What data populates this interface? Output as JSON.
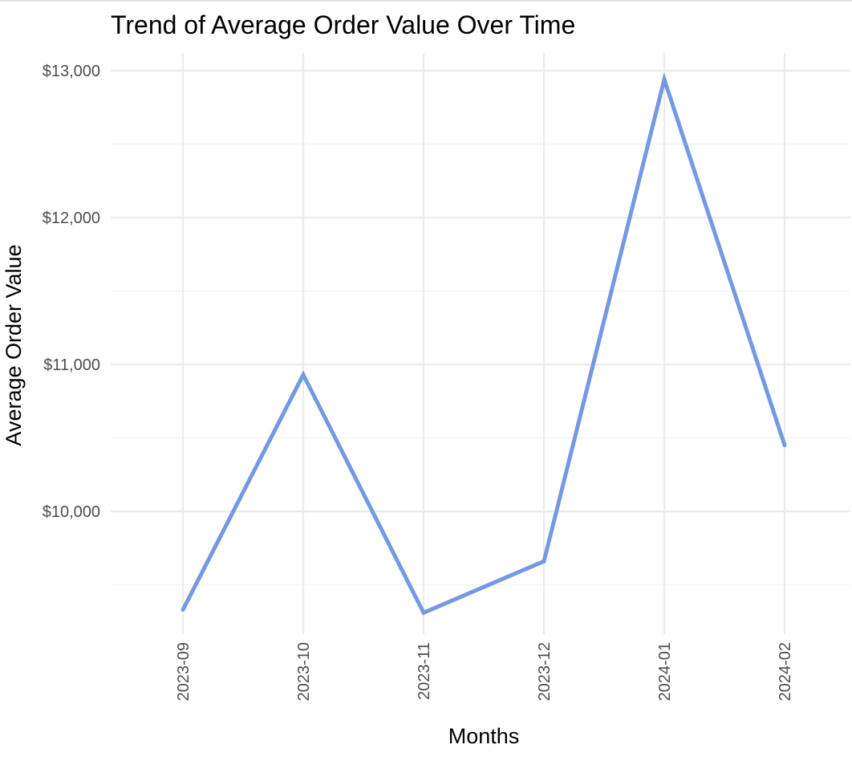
{
  "chart_data": {
    "type": "line",
    "title": "Trend of Average Order Value Over Time",
    "xlabel": "Months",
    "ylabel": "Average Order Value",
    "categories": [
      "2023-09",
      "2023-10",
      "2023-11",
      "2023-12",
      "2024-01",
      "2024-02"
    ],
    "series": [
      {
        "values": [
          9330,
          10930,
          9310,
          9660,
          12940,
          10450
        ]
      }
    ],
    "ylim": [
      9200,
      13100
    ],
    "yticks": [
      10000,
      11000,
      12000,
      13000
    ],
    "ytick_labels": [
      "$10,000",
      "$11,000",
      "$12,000",
      "$13,000"
    ],
    "y_minor_ticks": [
      9500,
      10500,
      11500,
      12500
    ],
    "grid": true,
    "legend": "none",
    "colors": {
      "line": "#7399e4",
      "grid_major": "#ebebeb",
      "grid_minor": "#f3f3f3",
      "tick_text": "#4d4d4d"
    }
  }
}
